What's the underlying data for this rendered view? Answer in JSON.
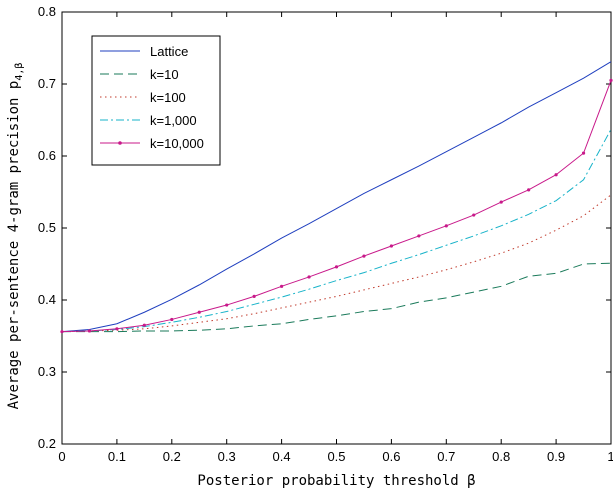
{
  "chart_data": {
    "type": "line",
    "title": "",
    "xlabel": "Posterior probability threshold β",
    "ylabel": "Average per-sentence 4-gram precision p",
    "ylabel_subscript": "4,β",
    "xlim": [
      0,
      1
    ],
    "ylim": [
      0.2,
      0.8
    ],
    "xticks": [
      0,
      0.1,
      0.2,
      0.3,
      0.4,
      0.5,
      0.6,
      0.7,
      0.8,
      0.9,
      1
    ],
    "xtick_labels": [
      "0",
      "0.1",
      "0.2",
      "0.3",
      "0.4",
      "0.5",
      "0.6",
      "0.7",
      "0.8",
      "0.9",
      "1"
    ],
    "yticks": [
      0.2,
      0.3,
      0.4,
      0.5,
      0.6,
      0.7,
      0.8
    ],
    "ytick_labels": [
      "0.2",
      "0.3",
      "0.4",
      "0.5",
      "0.6",
      "0.7",
      "0.8"
    ],
    "grid": false,
    "legend_position": "top-left",
    "x": [
      0,
      0.05,
      0.1,
      0.15,
      0.2,
      0.25,
      0.3,
      0.35,
      0.4,
      0.45,
      0.5,
      0.55,
      0.6,
      0.65,
      0.7,
      0.75,
      0.8,
      0.85,
      0.9,
      0.95,
      1.0
    ],
    "series": [
      {
        "name": "Lattice",
        "color": "#1f3fbf",
        "style": "solid",
        "marker": "none",
        "values": [
          0.356,
          0.359,
          0.367,
          0.383,
          0.401,
          0.421,
          0.443,
          0.464,
          0.486,
          0.506,
          0.527,
          0.548,
          0.567,
          0.586,
          0.606,
          0.626,
          0.646,
          0.668,
          0.688,
          0.708,
          0.731
        ]
      },
      {
        "name": "k=10",
        "color": "#1a7a5a",
        "style": "dashed",
        "marker": "none",
        "values": [
          0.356,
          0.356,
          0.356,
          0.357,
          0.357,
          0.358,
          0.36,
          0.364,
          0.367,
          0.373,
          0.378,
          0.384,
          0.388,
          0.397,
          0.403,
          0.411,
          0.419,
          0.433,
          0.437,
          0.45,
          0.451
        ]
      },
      {
        "name": "k=100",
        "color": "#c0392b",
        "style": "dotted",
        "marker": "none",
        "values": [
          0.356,
          0.357,
          0.358,
          0.36,
          0.364,
          0.369,
          0.374,
          0.381,
          0.389,
          0.397,
          0.405,
          0.414,
          0.423,
          0.432,
          0.442,
          0.453,
          0.465,
          0.479,
          0.497,
          0.517,
          0.546
        ]
      },
      {
        "name": "k=1,000",
        "color": "#17b3c9",
        "style": "dashdot",
        "marker": "none",
        "values": [
          0.356,
          0.357,
          0.359,
          0.363,
          0.369,
          0.376,
          0.384,
          0.394,
          0.404,
          0.415,
          0.427,
          0.438,
          0.451,
          0.463,
          0.476,
          0.489,
          0.503,
          0.519,
          0.538,
          0.567,
          0.637
        ]
      },
      {
        "name": "k=10,000",
        "color": "#c8198a",
        "style": "solid",
        "marker": "dot",
        "values": [
          0.356,
          0.357,
          0.36,
          0.365,
          0.373,
          0.383,
          0.393,
          0.405,
          0.419,
          0.432,
          0.446,
          0.461,
          0.475,
          0.489,
          0.503,
          0.518,
          0.536,
          0.553,
          0.574,
          0.604,
          0.705
        ]
      }
    ]
  }
}
